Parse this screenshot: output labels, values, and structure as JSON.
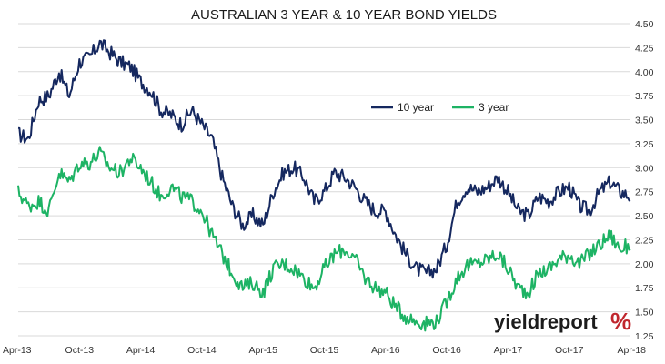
{
  "colors": {
    "ten_year": "#15285f",
    "three_year": "#1db364",
    "logo_accent": "#c0262d"
  },
  "logo": {
    "word": "yieldreport",
    "symbol": "%"
  },
  "chart_data": {
    "type": "line",
    "title": "AUSTRALIAN 3 YEAR & 10 YEAR BOND YIELDS",
    "xlabel": "",
    "ylabel": "",
    "x_ticks": [
      "Apr-13",
      "Oct-13",
      "Apr-14",
      "Oct-14",
      "Apr-15",
      "Oct-15",
      "Apr-16",
      "Oct-16",
      "Apr-17",
      "Oct-17",
      "Apr-18"
    ],
    "y_ticks": [
      "1.25",
      "1.50",
      "1.75",
      "2.00",
      "2.25",
      "2.50",
      "2.75",
      "3.00",
      "3.25",
      "3.50",
      "3.75",
      "4.00",
      "4.25",
      "4.50"
    ],
    "xlim": [
      "2013-04",
      "2018-04"
    ],
    "ylim": [
      1.25,
      4.5
    ],
    "grid": "horizontal",
    "y_axis_side": "right",
    "legend": {
      "placement": "top-right"
    },
    "series": [
      {
        "name": "10 year",
        "x": [
          "2013-04",
          "2013-05",
          "2013-06",
          "2013-07",
          "2013-08",
          "2013-09",
          "2013-10",
          "2013-11",
          "2013-12",
          "2014-01",
          "2014-02",
          "2014-03",
          "2014-04",
          "2014-05",
          "2014-06",
          "2014-07",
          "2014-08",
          "2014-09",
          "2014-10",
          "2014-11",
          "2014-12",
          "2015-01",
          "2015-02",
          "2015-03",
          "2015-04",
          "2015-05",
          "2015-06",
          "2015-07",
          "2015-08",
          "2015-09",
          "2015-10",
          "2015-11",
          "2015-12",
          "2016-01",
          "2016-02",
          "2016-03",
          "2016-04",
          "2016-05",
          "2016-06",
          "2016-07",
          "2016-08",
          "2016-09",
          "2016-10",
          "2016-11",
          "2016-12",
          "2017-01",
          "2017-02",
          "2017-03",
          "2017-04",
          "2017-05",
          "2017-06",
          "2017-07",
          "2017-08",
          "2017-09",
          "2017-10",
          "2017-11",
          "2017-12",
          "2018-01",
          "2018-02",
          "2018-03",
          "2018-04"
        ],
        "values": [
          3.35,
          3.3,
          3.7,
          3.75,
          4.0,
          3.75,
          4.1,
          4.15,
          4.3,
          4.2,
          4.1,
          4.05,
          3.9,
          3.8,
          3.6,
          3.55,
          3.45,
          3.6,
          3.45,
          3.3,
          2.9,
          2.6,
          2.4,
          2.5,
          2.4,
          2.75,
          2.95,
          3.0,
          2.9,
          2.65,
          2.75,
          2.95,
          2.9,
          2.8,
          2.65,
          2.55,
          2.55,
          2.3,
          2.1,
          1.95,
          1.9,
          1.95,
          2.2,
          2.65,
          2.8,
          2.75,
          2.8,
          2.9,
          2.75,
          2.55,
          2.5,
          2.7,
          2.65,
          2.75,
          2.8,
          2.6,
          2.55,
          2.75,
          2.85,
          2.75,
          2.7
        ]
      },
      {
        "name": "3 year",
        "x": [
          "2013-04",
          "2013-05",
          "2013-06",
          "2013-07",
          "2013-08",
          "2013-09",
          "2013-10",
          "2013-11",
          "2013-12",
          "2014-01",
          "2014-02",
          "2014-03",
          "2014-04",
          "2014-05",
          "2014-06",
          "2014-07",
          "2014-08",
          "2014-09",
          "2014-10",
          "2014-11",
          "2014-12",
          "2015-01",
          "2015-02",
          "2015-03",
          "2015-04",
          "2015-05",
          "2015-06",
          "2015-07",
          "2015-08",
          "2015-09",
          "2015-10",
          "2015-11",
          "2015-12",
          "2016-01",
          "2016-02",
          "2016-03",
          "2016-04",
          "2016-05",
          "2016-06",
          "2016-07",
          "2016-08",
          "2016-09",
          "2016-10",
          "2016-11",
          "2016-12",
          "2017-01",
          "2017-02",
          "2017-03",
          "2017-04",
          "2017-05",
          "2017-06",
          "2017-07",
          "2017-08",
          "2017-09",
          "2017-10",
          "2017-11",
          "2017-12",
          "2018-01",
          "2018-02",
          "2018-03",
          "2018-04"
        ],
        "values": [
          2.75,
          2.6,
          2.65,
          2.55,
          2.95,
          2.85,
          3.05,
          3.05,
          3.15,
          3.0,
          2.95,
          3.1,
          3.0,
          2.85,
          2.7,
          2.8,
          2.7,
          2.65,
          2.55,
          2.3,
          2.1,
          1.9,
          1.75,
          1.8,
          1.7,
          1.95,
          2.0,
          1.95,
          1.85,
          1.75,
          1.95,
          2.1,
          2.15,
          2.05,
          1.85,
          1.75,
          1.7,
          1.55,
          1.45,
          1.4,
          1.38,
          1.4,
          1.6,
          1.85,
          1.98,
          2.0,
          2.05,
          2.1,
          1.95,
          1.75,
          1.7,
          1.9,
          1.95,
          2.05,
          2.1,
          2.0,
          2.1,
          2.2,
          2.3,
          2.15,
          2.2
        ]
      }
    ]
  }
}
